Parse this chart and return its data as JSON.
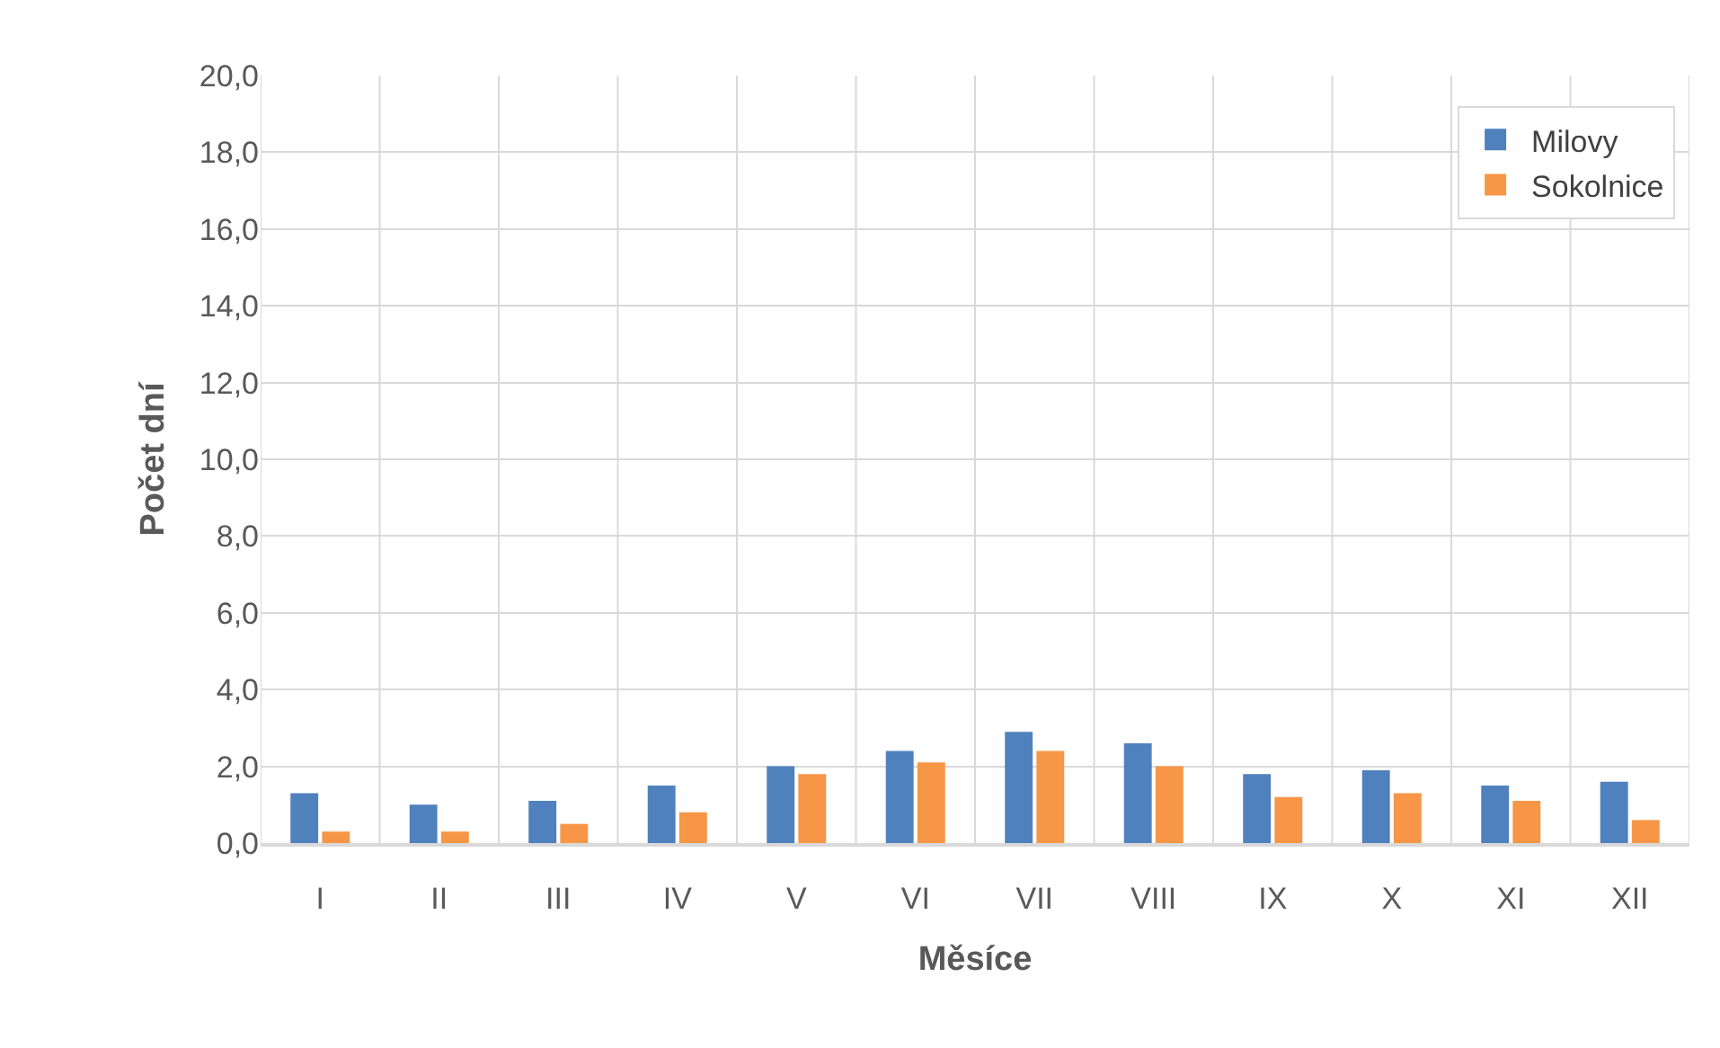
{
  "chart_data": {
    "type": "bar",
    "xlabel": "Měsíce",
    "ylabel": "Počet dní",
    "categories": [
      "I",
      "II",
      "III",
      "IV",
      "V",
      "VI",
      "VII",
      "VIII",
      "IX",
      "X",
      "XI",
      "XII"
    ],
    "series": [
      {
        "name": "Milovy",
        "color": "#4f81bd",
        "values": [
          1.3,
          1.0,
          1.1,
          1.5,
          2.0,
          2.4,
          2.9,
          2.6,
          1.8,
          1.9,
          1.5,
          1.6
        ]
      },
      {
        "name": "Sokolnice",
        "color": "#f79646",
        "values": [
          0.3,
          0.3,
          0.5,
          0.8,
          1.8,
          2.1,
          2.4,
          2.0,
          1.2,
          1.3,
          1.1,
          0.6
        ]
      }
    ],
    "ylim": [
      0,
      20
    ],
    "yticks": [
      {
        "value": 0,
        "label": "0,0"
      },
      {
        "value": 2,
        "label": "2,0"
      },
      {
        "value": 4,
        "label": "4,0"
      },
      {
        "value": 6,
        "label": "6,0"
      },
      {
        "value": 8,
        "label": "8,0"
      },
      {
        "value": 10,
        "label": "10,0"
      },
      {
        "value": 12,
        "label": "12,0"
      },
      {
        "value": 14,
        "label": "14,0"
      },
      {
        "value": 16,
        "label": "16,0"
      },
      {
        "value": 18,
        "label": "18,0"
      },
      {
        "value": 20,
        "label": "20,0"
      }
    ],
    "grid": true,
    "legend": "top right"
  }
}
